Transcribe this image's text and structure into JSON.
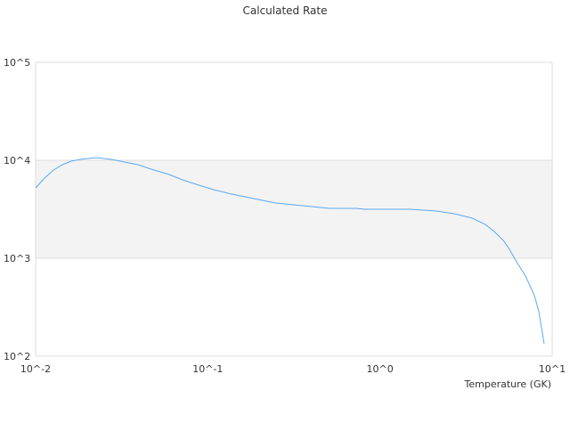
{
  "chart_data": {
    "type": "line",
    "title": "Calculated Rate",
    "xlabel": "Temperature (GK)",
    "ylabel": "",
    "x_scale": "log",
    "y_scale": "log",
    "xlim": [
      0.01,
      10
    ],
    "ylim": [
      100,
      100000
    ],
    "x_ticks": [
      {
        "value": 0.01,
        "label": "10^-2"
      },
      {
        "value": 0.1,
        "label": "10^-1"
      },
      {
        "value": 1,
        "label": "10^0"
      },
      {
        "value": 10,
        "label": "10^1"
      }
    ],
    "y_ticks": [
      {
        "value": 100,
        "label": "10^2"
      },
      {
        "value": 1000,
        "label": "10^3"
      },
      {
        "value": 10000,
        "label": "10^4"
      },
      {
        "value": 100000,
        "label": "10^5"
      }
    ],
    "alternating_band": {
      "from": 1000,
      "to": 10000,
      "color": "#f3f3f3"
    },
    "grid": true,
    "legend": "none",
    "colors": {
      "line": "#5ba8f0",
      "grid": "#dddddd",
      "band": "#f3f3f3"
    },
    "series": [
      {
        "x": [
          0.01,
          0.01127,
          0.0127,
          0.01429,
          0.0161,
          0.01815,
          0.0225,
          0.0275,
          0.0329,
          0.0394,
          0.047,
          0.0597,
          0.0714,
          0.0853,
          0.108,
          0.137,
          0.196,
          0.249,
          0.356,
          0.509,
          0.728,
          0.82,
          1.49,
          2.13,
          2.7,
          3.42,
          4.09,
          4.61,
          5.2,
          5.65,
          6.21,
          7.0,
          7.89,
          8.36,
          8.98
        ],
        "y": [
          5230,
          6580,
          7940,
          9010,
          9790,
          10210,
          10650,
          10210,
          9590,
          9010,
          8110,
          7160,
          6310,
          5690,
          5010,
          4520,
          3980,
          3660,
          3440,
          3230,
          3230,
          3160,
          3160,
          3030,
          2850,
          2570,
          2210,
          1870,
          1520,
          1230,
          920,
          658,
          415,
          285,
          134
        ]
      }
    ]
  }
}
